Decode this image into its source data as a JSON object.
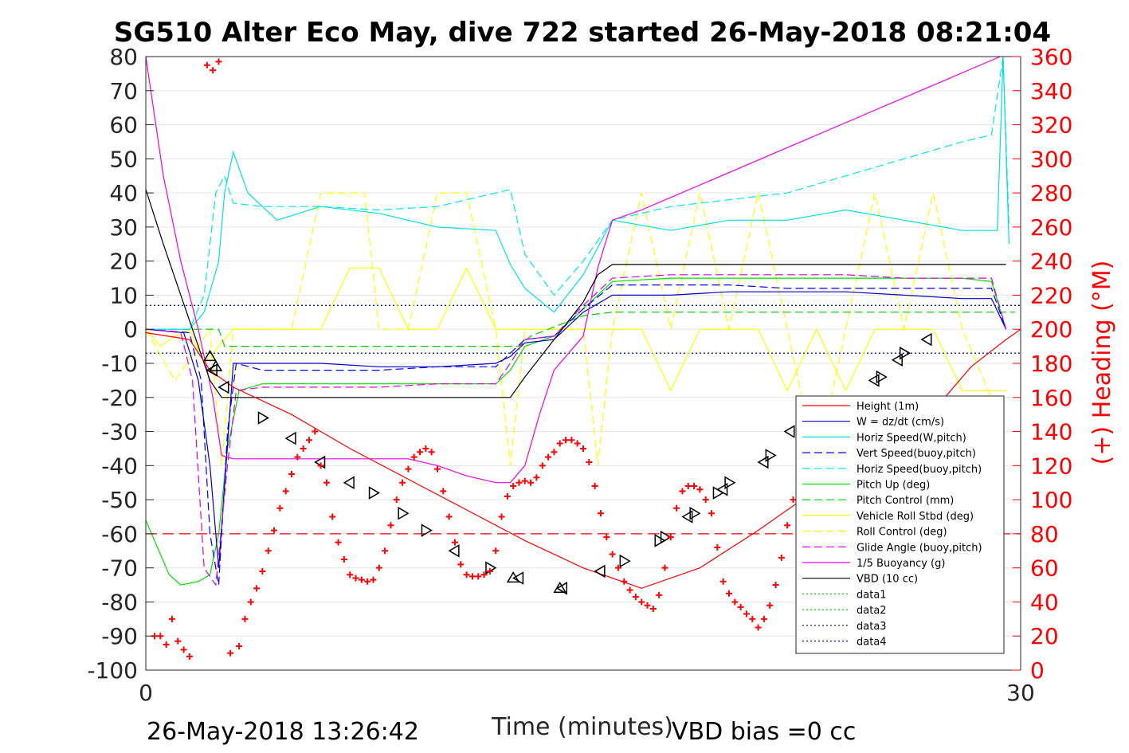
{
  "chart_data": {
    "type": "line",
    "title": "SG510 Alter Eco May, dive 722 started 26-May-2018 08:21:04",
    "xlabel": "Time (minutes)",
    "ylabel_right": "(+) Heading (°M)",
    "xlim": [
      0,
      30
    ],
    "ylim": [
      -100,
      80
    ],
    "y2lim": [
      0,
      360
    ],
    "x_ticks": [
      "0",
      "30"
    ],
    "y_ticks": [
      "80",
      "70",
      "60",
      "50",
      "40",
      "30",
      "20",
      "10",
      "0",
      "-10",
      "-20",
      "-30",
      "-40",
      "-50",
      "-60",
      "-70",
      "-80",
      "-90",
      "-100"
    ],
    "y2_ticks": [
      "360",
      "340",
      "320",
      "300",
      "280",
      "260",
      "240",
      "220",
      "200",
      "180",
      "160",
      "140",
      "120",
      "100",
      "80",
      "60",
      "40",
      "20",
      "0"
    ],
    "grid": true,
    "legend_position": "bottom-right",
    "footer_left": "26-May-2018 13:26:42",
    "footer_right": "VBD bias =0 cc",
    "colors": {
      "height": "#ff0000",
      "w": "#0000c8",
      "horiz_w": "#00e0e0",
      "vert_buoy": "#0000ff",
      "horiz_buoy": "#00e8e8",
      "pitch": "#00dd00",
      "pitch_ctrl": "#00cc00",
      "roll": "#ffff00",
      "roll_ctrl": "#ffff00",
      "glide": "#dd00dd",
      "buoy": "#ee00ee",
      "vbd": "#000000",
      "heading": "#ff0000",
      "data_green": "#00cc00",
      "data_blue": "#0000aa"
    },
    "legend": [
      {
        "label": "Height (1m)",
        "color": "#ff0000",
        "dash": ""
      },
      {
        "label": "W = dz/dt (cm/s)",
        "color": "#0000c8",
        "dash": ""
      },
      {
        "label": "Horiz Speed(W,pitch)",
        "color": "#00e0e0",
        "dash": ""
      },
      {
        "label": "Vert Speed(buoy,pitch)",
        "color": "#0000ff",
        "dash": "10,5"
      },
      {
        "label": "Horiz Speed(buoy,pitch)",
        "color": "#00e8e8",
        "dash": "10,5"
      },
      {
        "label": "Pitch Up (deg)",
        "color": "#00dd00",
        "dash": ""
      },
      {
        "label": "Pitch Control (mm)",
        "color": "#00cc00",
        "dash": "10,5"
      },
      {
        "label": "Vehicle Roll Stbd (deg)",
        "color": "#ffff00",
        "dash": ""
      },
      {
        "label": "Roll Control (deg)",
        "color": "#ffff00",
        "dash": "10,5"
      },
      {
        "label": "Glide Angle (buoy,pitch)",
        "color": "#dd00dd",
        "dash": "10,5"
      },
      {
        "label": "1/5 Buoyancy (g)",
        "color": "#ee00ee",
        "dash": ""
      },
      {
        "label": "VBD (10 cc)",
        "color": "#000000",
        "dash": ""
      },
      {
        "label": "data1",
        "color": "#00cc00",
        "dash": "2,3"
      },
      {
        "label": "data2",
        "color": "#00cc00",
        "dash": "2,3"
      },
      {
        "label": "data3",
        "color": "#0000aa",
        "dash": "2,3"
      },
      {
        "label": "data4",
        "color": "#0000aa",
        "dash": "2,3"
      }
    ],
    "series": [
      {
        "name": "Height (1m)",
        "x": [
          0,
          1.5,
          2.2,
          3.0,
          5,
          7,
          9,
          11,
          13,
          15,
          17,
          19,
          21,
          23,
          25,
          27,
          28.3,
          29.5,
          30
        ],
        "y": [
          -1,
          -3,
          -12,
          -17,
          -25,
          -35,
          -44,
          -53,
          -62,
          -70,
          -76,
          -70,
          -59,
          -47,
          -36,
          -24,
          -11,
          -3,
          0
        ]
      },
      {
        "name": "W = dz/dt (cm/s)",
        "x": [
          0,
          1.3,
          1.8,
          2.2,
          2.5,
          3.0,
          4,
          6,
          8,
          10,
          12,
          12.5,
          13,
          14,
          15,
          16,
          18,
          20,
          22,
          24,
          26,
          28,
          29,
          29.5
        ],
        "y": [
          0,
          -1,
          -15,
          -40,
          -70,
          -10,
          -10,
          -10,
          -11,
          -11,
          -10,
          -8,
          -4,
          -3,
          5,
          10,
          10,
          11,
          11,
          11,
          10,
          9,
          9,
          0
        ]
      },
      {
        "name": "Horiz Speed(W,pitch)",
        "x": [
          0,
          1.5,
          2.0,
          2.5,
          2.7,
          3.0,
          3.5,
          4.5,
          6,
          8,
          10,
          12,
          12.5,
          13,
          14,
          15,
          16,
          18,
          20,
          22,
          24,
          26,
          28,
          29.2,
          29.4,
          29.6
        ],
        "y": [
          0,
          0,
          5,
          20,
          40,
          52,
          40,
          32,
          36,
          34,
          30,
          29,
          19,
          12,
          5,
          16,
          32,
          29,
          32,
          32,
          35,
          32,
          29,
          29,
          80,
          25
        ]
      },
      {
        "name": "Vert Speed(buoy,pitch)",
        "x": [
          0,
          1.5,
          1.9,
          2.2,
          2.5,
          2.8,
          3.1,
          4,
          6,
          8,
          10,
          12,
          12.5,
          13,
          14,
          15,
          16,
          18,
          20,
          22,
          24,
          26,
          28,
          29,
          29.5
        ],
        "y": [
          0,
          -1,
          -15,
          -60,
          -75,
          -30,
          -10,
          -12,
          -12,
          -12,
          -11,
          -11,
          -7,
          -3,
          -2,
          6,
          13,
          13,
          13,
          12,
          12,
          12,
          12,
          12,
          0
        ]
      },
      {
        "name": "Horiz Speed(buoy,pitch)",
        "x": [
          0,
          1.5,
          2.0,
          2.4,
          2.7,
          3.0,
          4,
          6,
          8,
          10,
          12,
          12.5,
          13,
          14,
          15,
          16,
          18,
          20,
          22,
          24,
          26,
          28,
          29,
          29.4,
          29.6
        ],
        "y": [
          0,
          0,
          10,
          40,
          45,
          37,
          36,
          36,
          35,
          36,
          40,
          41,
          22,
          10,
          20,
          32,
          36,
          38,
          40,
          45,
          50,
          55,
          57,
          80,
          30
        ]
      },
      {
        "name": "Pitch Up (deg)",
        "x": [
          0,
          0.4,
          0.8,
          1.2,
          1.8,
          2.2,
          2.5,
          2.8,
          3.2,
          4,
          6,
          8,
          10,
          12,
          12.5,
          13,
          14,
          15,
          16,
          18,
          20,
          22,
          24,
          26,
          28,
          29,
          29.5
        ],
        "y": [
          -56,
          -64,
          -72,
          -75,
          -74,
          -72,
          -60,
          -35,
          -18,
          -16,
          -16,
          -16,
          -16,
          -16,
          -12,
          -5,
          -2,
          6,
          14,
          15,
          15,
          15,
          15,
          15,
          15,
          14,
          0
        ]
      },
      {
        "name": "Pitch Control (mm)",
        "x": [
          0,
          1.5,
          2.5,
          2.7,
          3.0,
          4,
          12.8,
          13.2,
          15,
          16,
          29.8
        ],
        "y": [
          0,
          0,
          0,
          -5,
          -5,
          -5,
          -5,
          -2,
          4,
          5,
          5
        ]
      },
      {
        "name": "Vehicle Roll Stbd (deg)",
        "x": [
          0,
          0.5,
          1,
          1.5,
          2,
          2.5,
          3,
          3.5,
          4,
          5,
          6,
          7,
          7.5,
          8,
          9,
          10,
          11,
          12,
          12.5,
          13,
          14,
          15,
          16,
          17,
          18,
          19,
          20,
          21,
          22,
          23,
          24,
          25,
          26,
          27,
          28,
          29,
          29.5
        ],
        "y": [
          0,
          -5,
          -2,
          0,
          -10,
          -5,
          0,
          0,
          0,
          0,
          0,
          18,
          18,
          18,
          0,
          0,
          18,
          0,
          0,
          0,
          0,
          0,
          0,
          0,
          -18,
          0,
          0,
          0,
          -18,
          0,
          -18,
          0,
          0,
          0,
          -18,
          -18,
          -18
        ]
      },
      {
        "name": "Roll Control (deg)",
        "x": [
          0,
          1,
          1.8,
          2.2,
          2.6,
          3.0,
          4,
          5,
          6,
          7,
          7.5,
          8,
          9,
          10,
          11,
          12,
          12.5,
          13,
          15,
          15.5,
          16,
          17,
          18,
          19,
          20,
          21,
          22,
          23,
          24,
          25,
          26,
          27,
          28,
          29,
          29.5
        ],
        "y": [
          0,
          -15,
          -5,
          0,
          -40,
          0,
          0,
          0,
          40,
          40,
          40,
          0,
          0,
          40,
          40,
          0,
          -40,
          0,
          0,
          -40,
          0,
          40,
          0,
          40,
          0,
          40,
          0,
          -40,
          0,
          40,
          0,
          40,
          0,
          -20,
          -20
        ]
      },
      {
        "name": "Glide Angle (buoy,pitch)",
        "x": [
          0,
          1.2,
          1.6,
          2.0,
          2.4,
          2.8,
          3.1,
          4,
          6,
          8,
          10,
          12,
          12.5,
          13,
          14,
          15,
          16,
          18,
          20,
          22,
          24,
          26,
          28,
          29,
          29.5
        ],
        "y": [
          0,
          -1,
          -15,
          -70,
          -75,
          -40,
          -18,
          -17,
          -17,
          -17,
          -16,
          -16,
          -10,
          -3,
          -2,
          7,
          15,
          16,
          16,
          16,
          16,
          15,
          15,
          15,
          0
        ]
      },
      {
        "name": "1/5 Buoyancy (g)",
        "x": [
          0,
          0.6,
          1.2,
          1.8,
          2.3,
          2.6,
          3,
          5,
          7,
          9,
          10,
          11,
          12,
          12.5,
          13,
          13.5,
          14,
          15,
          15.5,
          16,
          17,
          29.3
        ],
        "y": [
          80,
          45,
          20,
          0,
          -20,
          -37,
          -38,
          -38,
          -38,
          -38,
          -40,
          -43,
          -45,
          -45,
          -40,
          -25,
          -12,
          -2,
          18,
          32,
          35,
          80
        ]
      },
      {
        "name": "VBD (10 cc)",
        "x": [
          0,
          0.6,
          1.2,
          1.8,
          2.2,
          2.6,
          3,
          5,
          8,
          10,
          12,
          12.5,
          13,
          14,
          15,
          15.5,
          16,
          17,
          29.5
        ],
        "y": [
          41,
          25,
          10,
          -5,
          -15,
          -20,
          -20,
          -20,
          -20,
          -20,
          -20,
          -20,
          -14,
          -3,
          8,
          16,
          19,
          19,
          19
        ]
      },
      {
        "name": "data1",
        "x": [
          0,
          30
        ],
        "y": [
          7,
          7
        ]
      },
      {
        "name": "data2",
        "x": [
          0,
          30
        ],
        "y": [
          -7,
          -7
        ]
      },
      {
        "name": "data3",
        "x": [
          0,
          30
        ],
        "y": [
          7,
          7
        ]
      },
      {
        "name": "data4",
        "x": [
          0,
          30
        ],
        "y": [
          -7,
          -7
        ]
      }
    ],
    "heading_reference": {
      "y2": 80
    },
    "heading_points": {
      "x": [
        0.3,
        0.5,
        0.7,
        0.9,
        1.1,
        1.3,
        1.5,
        2.1,
        2.3,
        2.5,
        2.9,
        3.2,
        3.4,
        3.6,
        3.8,
        4.0,
        4.2,
        4.4,
        4.6,
        4.8,
        5.0,
        5.2,
        5.4,
        5.6,
        5.8,
        6.0,
        6.2,
        6.4,
        6.6,
        6.8,
        7.0,
        7.2,
        7.4,
        7.6,
        7.8,
        8.0,
        8.2,
        8.4,
        8.6,
        8.8,
        9.0,
        9.2,
        9.4,
        9.6,
        9.8,
        10.0,
        10.2,
        10.4,
        10.6,
        10.8,
        11.0,
        11.2,
        11.4,
        11.6,
        11.8,
        12.0,
        12.2,
        12.4,
        12.6,
        12.8,
        13.0,
        13.2,
        13.4,
        13.6,
        13.8,
        14.0,
        14.2,
        14.4,
        14.6,
        14.8,
        15.0,
        15.2,
        15.4,
        15.6,
        15.8,
        16.0,
        16.2,
        16.4,
        16.6,
        16.8,
        17.0,
        17.2,
        17.4,
        17.6,
        17.8,
        18.0,
        18.2,
        18.4,
        18.6,
        18.8,
        19.0,
        19.2,
        19.4,
        19.6,
        19.8,
        20.0,
        20.2,
        20.4,
        20.6,
        20.8,
        21.0,
        21.2,
        21.4,
        21.6,
        21.8,
        22.0,
        22.2,
        22.4,
        22.6,
        22.8,
        23.0,
        23.2,
        23.4,
        23.6,
        23.8,
        24.0,
        24.2,
        24.4,
        24.6,
        24.8,
        25.0,
        25.2,
        25.4,
        25.6,
        25.8,
        26.0,
        26.2,
        26.4,
        26.6,
        26.8,
        27.0,
        27.2,
        27.4,
        27.6,
        27.8,
        28.0,
        28.2,
        28.4,
        28.6,
        28.8,
        29.0
      ],
      "y2": [
        20,
        20,
        15,
        30,
        17,
        12,
        8,
        355,
        352,
        357,
        10,
        14,
        30,
        40,
        48,
        58,
        70,
        82,
        95,
        105,
        115,
        125,
        130,
        135,
        140,
        120,
        110,
        90,
        75,
        65,
        56,
        54,
        53,
        52,
        53,
        60,
        70,
        85,
        100,
        110,
        118,
        125,
        128,
        130,
        128,
        118,
        105,
        90,
        75,
        62,
        56,
        55,
        55,
        56,
        58,
        70,
        90,
        102,
        108,
        110,
        111,
        110,
        113,
        120,
        125,
        128,
        133,
        135,
        135,
        133,
        130,
        122,
        108,
        92,
        78,
        68,
        60,
        52,
        47,
        43,
        40,
        38,
        36,
        44,
        60,
        78,
        95,
        105,
        108,
        108,
        106,
        100,
        92,
        72,
        52,
        45,
        40,
        37,
        33,
        30,
        25,
        30,
        38,
        50,
        66,
        85,
        100,
        108,
        110,
        112,
        110,
        100,
        85,
        70,
        55,
        45,
        38,
        33,
        30,
        28,
        33,
        40,
        55,
        70,
        85,
        100,
        110,
        112,
        112,
        110,
        108,
        105,
        100,
        95,
        90,
        87,
        85,
        84,
        82,
        80,
        78,
        75,
        70,
        60,
        55,
        50
      ]
    },
    "direction_markers": [
      {
        "x": 2.2,
        "y": -8,
        "dir": "up"
      },
      {
        "x": 2.3,
        "y": -12,
        "dir": "left"
      },
      {
        "x": 2.4,
        "y": -11,
        "dir": "up"
      },
      {
        "x": 2.7,
        "y": -17,
        "dir": "left"
      },
      {
        "x": 4.0,
        "y": -26,
        "dir": "right"
      },
      {
        "x": 5.0,
        "y": -32,
        "dir": "left"
      },
      {
        "x": 6.0,
        "y": -39,
        "dir": "left"
      },
      {
        "x": 7.0,
        "y": -45,
        "dir": "left"
      },
      {
        "x": 7.8,
        "y": -48,
        "dir": "right"
      },
      {
        "x": 8.8,
        "y": -54,
        "dir": "right"
      },
      {
        "x": 9.6,
        "y": -59,
        "dir": "right"
      },
      {
        "x": 10.6,
        "y": -65,
        "dir": "left"
      },
      {
        "x": 11.8,
        "y": -70,
        "dir": "right"
      },
      {
        "x": 12.6,
        "y": -73,
        "dir": "up"
      },
      {
        "x": 12.8,
        "y": -73,
        "dir": "left"
      },
      {
        "x": 14.2,
        "y": -76,
        "dir": "up"
      },
      {
        "x": 14.3,
        "y": -76,
        "dir": "left"
      },
      {
        "x": 15.6,
        "y": -71,
        "dir": "left"
      },
      {
        "x": 16.4,
        "y": -68,
        "dir": "right"
      },
      {
        "x": 17.6,
        "y": -62,
        "dir": "right"
      },
      {
        "x": 17.8,
        "y": -61,
        "dir": "right"
      },
      {
        "x": 18.6,
        "y": -55,
        "dir": "left"
      },
      {
        "x": 18.8,
        "y": -54,
        "dir": "right"
      },
      {
        "x": 19.6,
        "y": -48,
        "dir": "right"
      },
      {
        "x": 19.8,
        "y": -47,
        "dir": "left"
      },
      {
        "x": 20.0,
        "y": -45,
        "dir": "right"
      },
      {
        "x": 21.2,
        "y": -39,
        "dir": "left"
      },
      {
        "x": 21.4,
        "y": -37,
        "dir": "right"
      },
      {
        "x": 22.1,
        "y": -30,
        "dir": "left"
      },
      {
        "x": 25.0,
        "y": -15,
        "dir": "left"
      },
      {
        "x": 25.2,
        "y": -14,
        "dir": "right"
      },
      {
        "x": 25.8,
        "y": -9,
        "dir": "left"
      },
      {
        "x": 26.0,
        "y": -7,
        "dir": "right"
      },
      {
        "x": 26.8,
        "y": -3,
        "dir": "left"
      }
    ]
  }
}
